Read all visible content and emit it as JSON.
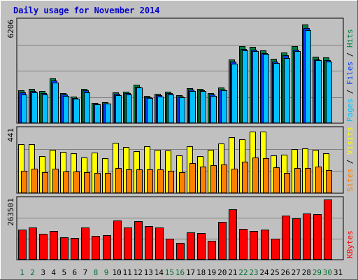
{
  "chart_data": {
    "type": "bar",
    "title": "Daily usage for November 2014",
    "categories": [
      "1",
      "2",
      "3",
      "4",
      "5",
      "6",
      "7",
      "8",
      "9",
      "10",
      "11",
      "12",
      "13",
      "14",
      "15",
      "16",
      "17",
      "18",
      "19",
      "20",
      "21",
      "22",
      "23",
      "24",
      "25",
      "26",
      "27",
      "28",
      "29",
      "30",
      "31"
    ],
    "weekend_days": [
      "1",
      "2",
      "8",
      "9",
      "15",
      "16",
      "22",
      "23",
      "29",
      "30"
    ],
    "panels": [
      {
        "id": "top",
        "max_label": "6206",
        "ymax": 6206,
        "right_labels": [
          {
            "text": "Hits",
            "color": "#008040"
          },
          {
            "text": " / ",
            "color": "#000000"
          },
          {
            "text": "Files",
            "color": "#0040ff"
          },
          {
            "text": " / ",
            "color": "#000000"
          },
          {
            "text": "Pages",
            "color": "#00c0ff"
          }
        ],
        "series": [
          {
            "name": "Hits",
            "color": "#008040",
            "values": [
              2000,
              2080,
              1960,
              2700,
              1830,
              1620,
              2100,
              1240,
              1260,
              1850,
              1920,
              2350,
              1640,
              1780,
              1900,
              1680,
              2120,
              2100,
              1810,
              2150,
              3870,
              4690,
              4630,
              4440,
              3900,
              4290,
              4660,
              6010,
              4040,
              3990,
              0
            ]
          },
          {
            "name": "Files",
            "color": "#0040ff",
            "values": [
              1870,
              1950,
              1830,
              2600,
              1730,
              1540,
              2000,
              1180,
              1200,
              1770,
              1840,
              2230,
              1570,
              1700,
              1820,
              1600,
              2030,
              2010,
              1730,
              2060,
              3720,
              4510,
              4450,
              4260,
              3750,
              4130,
              4480,
              5800,
              3880,
              3840,
              0
            ]
          },
          {
            "name": "Pages",
            "color": "#00c0ff",
            "values": [
              1740,
              1850,
              1760,
              2480,
              1650,
              1480,
              1890,
              1150,
              1190,
              1680,
              1750,
              2170,
              1520,
              1630,
              1740,
              1560,
              1960,
              1940,
              1640,
              1980,
              3600,
              4400,
              4390,
              4210,
              3640,
              3940,
              4370,
              5660,
              3840,
              3750,
              0
            ]
          }
        ]
      },
      {
        "id": "mid",
        "max_label": "441",
        "ymax": 441,
        "right_labels": [
          {
            "text": "Visits",
            "color": "#ffff00"
          },
          {
            "text": " / ",
            "color": "#000000"
          },
          {
            "text": "Sites",
            "color": "#ff8000"
          }
        ],
        "series": [
          {
            "name": "Visits",
            "color": "#ffff00",
            "values": [
              340,
              340,
              255,
              300,
              285,
              275,
              245,
              280,
              240,
              350,
              320,
              290,
              325,
              300,
              295,
              260,
              325,
              255,
              300,
              345,
              390,
              375,
              425,
              425,
              260,
              265,
              305,
              310,
              300,
              275,
              0
            ]
          },
          {
            "name": "Sites",
            "color": "#ff8000",
            "values": [
              155,
              170,
              145,
              170,
              150,
              150,
              145,
              140,
              140,
              175,
              165,
              165,
              165,
              165,
              155,
              145,
              210,
              185,
              195,
              200,
              170,
              220,
              245,
              240,
              180,
              140,
              175,
              175,
              185,
              160,
              0
            ]
          }
        ]
      },
      {
        "id": "bot",
        "max_label": "263501",
        "ymax": 263501,
        "right_labels": [
          {
            "text": "KBytes",
            "color": "#ff0000"
          }
        ],
        "series": [
          {
            "name": "KBytes",
            "color": "#ff0000",
            "values": [
              131000,
              140000,
              113000,
              126000,
              98000,
              96000,
              142000,
              104000,
              106000,
              173000,
              141000,
              168000,
              146000,
              140000,
              93000,
              75000,
              119000,
              117000,
              83000,
              166000,
              220000,
              134000,
              125000,
              131000,
              91000,
              192000,
              180000,
              201000,
              198000,
              263500,
              0
            ]
          }
        ]
      }
    ]
  }
}
